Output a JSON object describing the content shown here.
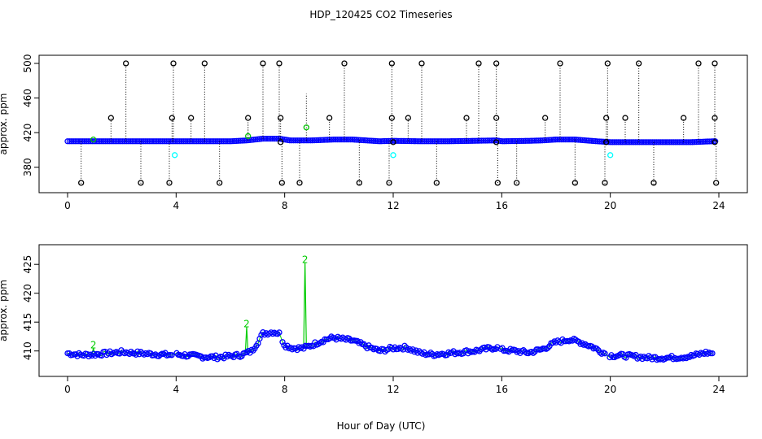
{
  "title": "HDP_120425  CO2 Timeseries",
  "xlabel": "Hour of Day (UTC)",
  "colors": {
    "main": "#0000ff",
    "outline": "#00cc00",
    "outlier": "#000000",
    "cyan": "#00ffff",
    "flag_green": "#00c000"
  },
  "chart_data": [
    {
      "type": "scatter",
      "panel": "top",
      "ylabel": "approx. ppm",
      "xlim": [
        0,
        24
      ],
      "ylim": [
        360,
        500
      ],
      "xticks": [
        0,
        4,
        8,
        12,
        16,
        20,
        24
      ],
      "yticks": [
        380,
        420,
        460,
        500
      ],
      "baseline_series": [
        [
          0,
          410
        ],
        [
          1,
          410
        ],
        [
          2,
          410
        ],
        [
          3,
          410
        ],
        [
          4,
          410
        ],
        [
          5,
          410
        ],
        [
          6,
          410
        ],
        [
          6.6,
          411
        ],
        [
          7.2,
          413
        ],
        [
          7.8,
          413
        ],
        [
          8.2,
          411
        ],
        [
          9,
          411
        ],
        [
          9.8,
          412
        ],
        [
          10.5,
          412
        ],
        [
          11,
          411
        ],
        [
          11.5,
          410
        ],
        [
          12,
          410.5
        ],
        [
          13,
          410
        ],
        [
          14,
          410
        ],
        [
          15,
          410.5
        ],
        [
          15.8,
          411
        ],
        [
          16,
          410
        ],
        [
          17,
          410.5
        ],
        [
          17.5,
          411
        ],
        [
          18,
          412
        ],
        [
          18.7,
          412
        ],
        [
          19.5,
          410
        ],
        [
          20,
          409
        ],
        [
          21,
          409
        ],
        [
          22,
          409
        ],
        [
          23,
          409
        ],
        [
          23.8,
          410
        ]
      ],
      "outliers_high": [
        2.15,
        3.9,
        5.05,
        7.2,
        7.8,
        10.2,
        11.95,
        13.05,
        15.15,
        15.8,
        18.15,
        19.9,
        21.05,
        23.25,
        23.85
      ],
      "outliers_mid": [
        1.6,
        3.85,
        4.55,
        6.65,
        7.85,
        9.65,
        11.95,
        12.55,
        14.7,
        15.8,
        17.6,
        19.85,
        20.55,
        22.7,
        23.85
      ],
      "outliers_low": [
        0.5,
        2.7,
        3.75,
        5.6,
        7.9,
        8.55,
        10.75,
        11.85,
        13.6,
        15.85,
        16.55,
        18.7,
        19.8,
        21.6,
        23.9
      ],
      "outliers_cyan": [
        3.95,
        12.0,
        20.0
      ],
      "outliers_green": [
        6.65,
        8.8
      ]
    },
    {
      "type": "scatter",
      "panel": "bottom",
      "ylabel": "approx. ppm",
      "xlim": [
        0,
        24
      ],
      "ylim": [
        407,
        427
      ],
      "xticks": [
        0,
        4,
        8,
        12,
        16,
        20,
        24
      ],
      "yticks": [
        410,
        415,
        420,
        425
      ],
      "baseline_series": [
        [
          0,
          409.6
        ],
        [
          0.5,
          409.3
        ],
        [
          1,
          409.4
        ],
        [
          1.5,
          409.6
        ],
        [
          2,
          409.8
        ],
        [
          3,
          409.5
        ],
        [
          3.8,
          409.3
        ],
        [
          4,
          409.4
        ],
        [
          4.5,
          409.2
        ],
        [
          5,
          409.0
        ],
        [
          5.5,
          408.9
        ],
        [
          6,
          409.1
        ],
        [
          6.4,
          409.3
        ],
        [
          6.8,
          410.0
        ],
        [
          7,
          411.5
        ],
        [
          7.2,
          413.0
        ],
        [
          7.6,
          413.3
        ],
        [
          7.8,
          413.0
        ],
        [
          8,
          411.0
        ],
        [
          8.3,
          410.5
        ],
        [
          8.7,
          410.5
        ],
        [
          9,
          411.0
        ],
        [
          9.5,
          412.0
        ],
        [
          9.8,
          412.3
        ],
        [
          10.2,
          412.0
        ],
        [
          10.5,
          411.8
        ],
        [
          11,
          410.8
        ],
        [
          11.5,
          410.0
        ],
        [
          12,
          410.5
        ],
        [
          12.5,
          410.6
        ],
        [
          13,
          409.6
        ],
        [
          13.5,
          409.4
        ],
        [
          14,
          409.6
        ],
        [
          14.5,
          409.8
        ],
        [
          15,
          410.0
        ],
        [
          15.5,
          410.4
        ],
        [
          15.8,
          410.6
        ],
        [
          16,
          410.2
        ],
        [
          16.5,
          410.0
        ],
        [
          17,
          409.7
        ],
        [
          17.5,
          410.3
        ],
        [
          18,
          411.5
        ],
        [
          18.5,
          412.0
        ],
        [
          18.9,
          411.5
        ],
        [
          19.3,
          410.8
        ],
        [
          19.7,
          409.8
        ],
        [
          20,
          409.2
        ],
        [
          20.5,
          409.2
        ],
        [
          21,
          409.0
        ],
        [
          21.5,
          408.8
        ],
        [
          22,
          408.8
        ],
        [
          22.5,
          408.9
        ],
        [
          23,
          409.1
        ],
        [
          23.5,
          409.7
        ],
        [
          23.8,
          409.6
        ]
      ],
      "spikes": [
        {
          "x": 0.95,
          "y": 411,
          "label": "2"
        },
        {
          "x": 6.6,
          "y": 414.7,
          "label": "2"
        },
        {
          "x": 8.75,
          "y": 425.8,
          "label": "2"
        }
      ]
    }
  ]
}
